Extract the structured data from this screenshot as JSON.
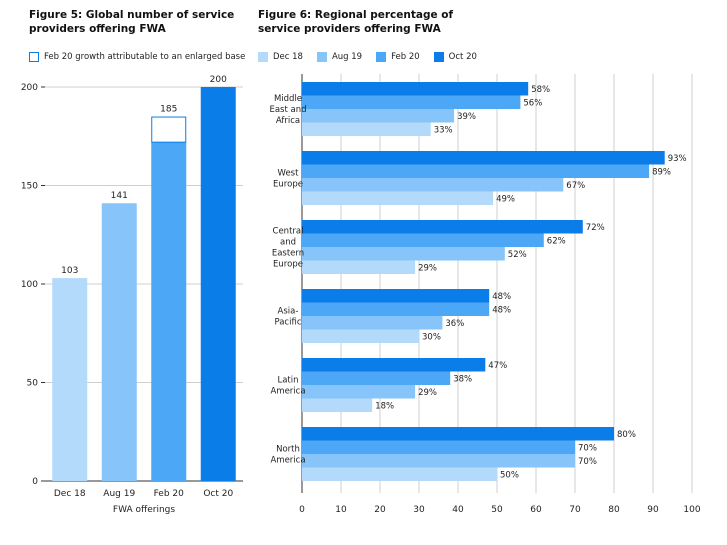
{
  "fig5": {
    "title_line1": "Figure 5: Global number of service",
    "title_line2": "providers offering FWA",
    "legend_label": "Feb 20 growth attributable to an enlarged base",
    "xlabel": "FWA offerings"
  },
  "fig6": {
    "title_line1": "Figure 6: Regional percentage of",
    "title_line2": "service providers offering FWA"
  },
  "colors": {
    "dec18": "#b3dafb",
    "aug19": "#86c4f9",
    "feb20": "#4ca8f6",
    "oct20": "#0a7de9",
    "outline": "#0a7de9",
    "grid": "#cfcfcf",
    "axis": "#333333"
  },
  "chart_data": [
    {
      "type": "bar",
      "title": "Figure 5: Global number of service providers offering FWA",
      "xlabel": "FWA offerings",
      "ylabel": "",
      "categories": [
        "Dec 18",
        "Aug 19",
        "Feb 20",
        "Oct 20"
      ],
      "values": [
        103,
        141,
        185,
        200
      ],
      "value_labels": [
        "103",
        "141",
        "185",
        "200"
      ],
      "stacked_segment": {
        "category": "Feb 20",
        "base": 172,
        "enlarged_base_growth": 13,
        "name": "Feb 20 growth attributable to an enlarged base"
      },
      "ylim": [
        0,
        200
      ],
      "yticks": [
        "0",
        "50",
        "100",
        "150",
        "200"
      ],
      "grid": true
    },
    {
      "type": "bar",
      "orientation": "horizontal",
      "title": "Figure 6: Regional percentage of service providers offering FWA",
      "categories": [
        [
          "Middle",
          "East and",
          "Africa"
        ],
        [
          "West",
          "Europe"
        ],
        [
          "Central",
          "and",
          "Eastern",
          "Europe"
        ],
        [
          "Asia-",
          "Pacific"
        ],
        [
          "Latin",
          "America"
        ],
        [
          "North",
          "America"
        ]
      ],
      "series": [
        {
          "name": "Oct 20",
          "values": [
            58,
            93,
            72,
            48,
            47,
            80
          ],
          "labels": [
            "58%",
            "93%",
            "72%",
            "48%",
            "47%",
            "80%"
          ]
        },
        {
          "name": "Feb 20",
          "values": [
            56,
            89,
            62,
            48,
            38,
            70
          ],
          "labels": [
            "56%",
            "89%",
            "62%",
            "48%",
            "38%",
            "70%"
          ]
        },
        {
          "name": "Aug 19",
          "values": [
            39,
            67,
            52,
            36,
            29,
            70
          ],
          "labels": [
            "39%",
            "67%",
            "52%",
            "36%",
            "29%",
            "70%"
          ]
        },
        {
          "name": "Dec 18",
          "values": [
            33,
            49,
            29,
            30,
            18,
            50
          ],
          "labels": [
            "33%",
            "49%",
            "29%",
            "30%",
            "18%",
            "50%"
          ]
        }
      ],
      "legend": [
        "Dec 18",
        "Aug 19",
        "Feb 20",
        "Oct 20"
      ],
      "xlim": [
        0,
        100
      ],
      "xticks": [
        "0",
        "10",
        "20",
        "30",
        "40",
        "50",
        "60",
        "70",
        "80",
        "90",
        "100"
      ],
      "grid": true
    }
  ]
}
